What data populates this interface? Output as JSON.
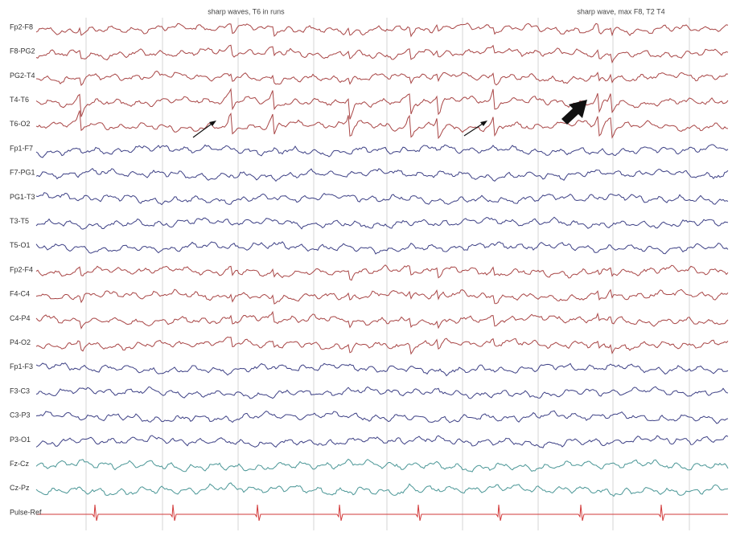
{
  "annotations": [
    {
      "text": "sharp waves, T6 in runs"
    },
    {
      "text": "sharp wave, max F8, T2 T4"
    }
  ],
  "channels": [
    {
      "label": "Fp2-F8",
      "color": "#a84545"
    },
    {
      "label": "F8-PG2",
      "color": "#a84545"
    },
    {
      "label": "PG2-T4",
      "color": "#a84545"
    },
    {
      "label": "T4-T6",
      "color": "#a84545"
    },
    {
      "label": "T6-O2",
      "color": "#a84545"
    },
    {
      "label": "Fp1-F7",
      "color": "#3d4085"
    },
    {
      "label": "F7-PG1",
      "color": "#3d4085"
    },
    {
      "label": "PG1-T3",
      "color": "#3d4085"
    },
    {
      "label": "T3-T5",
      "color": "#3d4085"
    },
    {
      "label": "T5-O1",
      "color": "#3d4085"
    },
    {
      "label": "Fp2-F4",
      "color": "#a84545"
    },
    {
      "label": "F4-C4",
      "color": "#a84545"
    },
    {
      "label": "C4-P4",
      "color": "#a84545"
    },
    {
      "label": "P4-O2",
      "color": "#a84545"
    },
    {
      "label": "Fp1-F3",
      "color": "#3d4085"
    },
    {
      "label": "F3-C3",
      "color": "#3d4085"
    },
    {
      "label": "C3-P3",
      "color": "#3d4085"
    },
    {
      "label": "P3-O1",
      "color": "#3d4085"
    },
    {
      "label": "Fz-Cz",
      "color": "#4a9696"
    },
    {
      "label": "Cz-Pz",
      "color": "#4a9696"
    },
    {
      "label": "Pulse-Ref",
      "color": "#d23a3a"
    }
  ]
}
